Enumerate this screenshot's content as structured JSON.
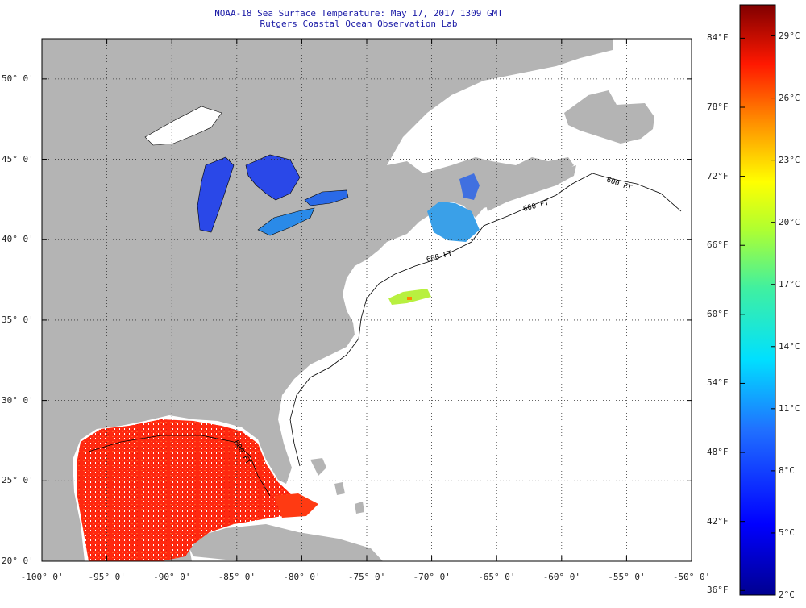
{
  "title": {
    "line1": "NOAA-18 Sea Surface Temperature:  May 17, 2017 1309 GMT",
    "line2": "Rutgers Coastal Ocean Observation Lab"
  },
  "map": {
    "lon_range": [
      -100,
      -50
    ],
    "lat_range": [
      20,
      52.5
    ],
    "lon_labels": [
      "-100° 0'",
      "-95° 0'",
      "-90° 0'",
      "-85° 0'",
      "-80° 0'",
      "-75° 0'",
      "-70° 0'",
      "-65° 0'",
      "-60° 0'",
      "-55° 0'",
      "-50° 0'"
    ],
    "lat_labels": [
      "20° 0'",
      "25° 0'",
      "30° 0'",
      "35° 0'",
      "40° 0'",
      "45° 0'",
      "50° 0'"
    ],
    "contour_labels": [
      "600 FT",
      "600 FT",
      "600 FT",
      "600 FT"
    ],
    "colors": {
      "land": "#b4b4b4",
      "ocean_nodata": "#ffffff",
      "gulf": "#ff3010",
      "lakes": "#2040e0"
    }
  },
  "colorbar": {
    "f_labels": [
      "36°F",
      "42°F",
      "48°F",
      "54°F",
      "60°F",
      "66°F",
      "72°F",
      "78°F",
      "84°F"
    ],
    "c_labels": [
      "2°C",
      "5°C",
      "8°C",
      "11°C",
      "14°C",
      "17°C",
      "20°C",
      "23°C",
      "26°C",
      "29°C"
    ]
  }
}
